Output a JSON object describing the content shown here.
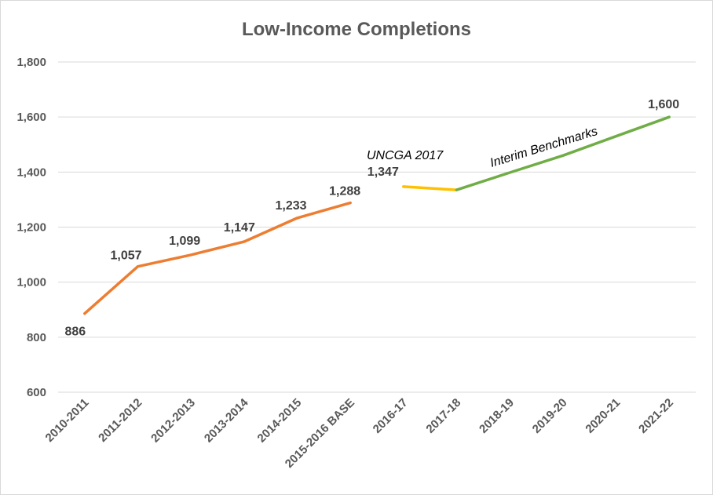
{
  "chart_data": {
    "type": "line",
    "title": "Low-Income Completions",
    "categories": [
      "2010-2011",
      "2011-2012",
      "2012-2013",
      "2013-2014",
      "2014-2015",
      "2015-2016 BASE",
      "2016-17",
      "2017-18",
      "2018-19",
      "2019-20",
      "2020-21",
      "2021-22"
    ],
    "ylim": [
      600,
      1800
    ],
    "yticks": [
      600,
      800,
      1000,
      1200,
      1400,
      1600,
      1800
    ],
    "ytick_labels": [
      "600",
      "800",
      "1,000",
      "1,200",
      "1,400",
      "1,600",
      "1,800"
    ],
    "grid": true,
    "series": [
      {
        "color": "#ED7D31",
        "points": [
          {
            "x": "2010-2011",
            "y": 886,
            "label": "886"
          },
          {
            "x": "2011-2012",
            "y": 1057,
            "label": "1,057"
          },
          {
            "x": "2012-2013",
            "y": 1099,
            "label": "1,099"
          },
          {
            "x": "2013-2014",
            "y": 1147,
            "label": "1,147"
          },
          {
            "x": "2014-2015",
            "y": 1233,
            "label": "1,233"
          },
          {
            "x": "2015-2016 BASE",
            "y": 1288,
            "label": "1,288"
          }
        ]
      },
      {
        "color": "#FFC000",
        "points": [
          {
            "x": "2016-17",
            "y": 1347,
            "label": "1,347"
          },
          {
            "x": "2017-18",
            "y": 1335,
            "label": ""
          }
        ]
      },
      {
        "color": "#70AD47",
        "points": [
          {
            "x": "2017-18",
            "y": 1335,
            "label": ""
          },
          {
            "x": "2018-19",
            "y": 1398,
            "label": ""
          },
          {
            "x": "2019-20",
            "y": 1460,
            "label": ""
          },
          {
            "x": "2020-21",
            "y": 1530,
            "label": ""
          },
          {
            "x": "2021-22",
            "y": 1600,
            "label": "1,600"
          }
        ]
      }
    ],
    "annotations": [
      "UNCGA 2017",
      "Interim Benchmarks"
    ]
  }
}
